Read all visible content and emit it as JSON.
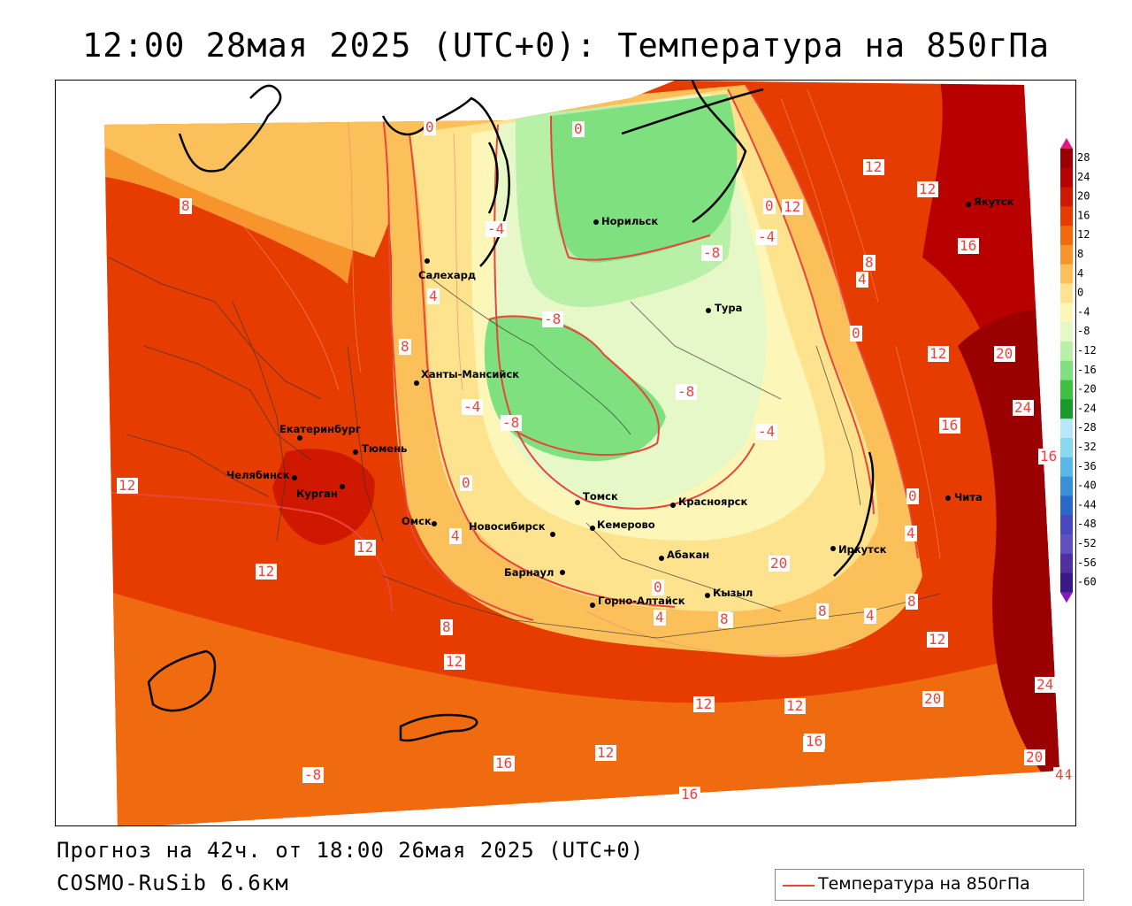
{
  "title": "12:00 28мая 2025 (UTC+0): Температура на 850гПа",
  "forecast_text": "Прогноз на 42ч. от 18:00 26мая 2025 (UTC+0)",
  "model_text": "COSMO-RuSib 6.6км",
  "legend": {
    "label": "Температура на 850гПа",
    "line_color": "#e8463c"
  },
  "colorbar": {
    "ticks": [
      "28",
      "24",
      "20",
      "16",
      "12",
      "8",
      "4",
      "0",
      "-4",
      "-8",
      "-12",
      "-16",
      "-20",
      "-24",
      "-28",
      "-32",
      "-36",
      "-40",
      "-44",
      "-48",
      "-52",
      "-56",
      "-60"
    ],
    "colors": [
      "#9b0000",
      "#b80000",
      "#d01800",
      "#e63c00",
      "#f06a10",
      "#f7952c",
      "#fbc05a",
      "#fde38e",
      "#fcf6b8",
      "#e6f8c8",
      "#b8f0a8",
      "#7ee07e",
      "#40c040",
      "#1a9a2a",
      "#b8e8f8",
      "#88d8f0",
      "#58b8e8",
      "#3890d8",
      "#2868c8",
      "#4848c0",
      "#6050c0",
      "#5030a0",
      "#3a1888"
    ],
    "top_arrow_color": "#e0188a",
    "bottom_arrow_color": "#8a18c0"
  },
  "cities": [
    {
      "name": "Якутск"
    },
    {
      "name": "Норильск"
    },
    {
      "name": "Салехард"
    },
    {
      "name": "Тура"
    },
    {
      "name": "Ханты-Мансийск"
    },
    {
      "name": "Екатеринбург"
    },
    {
      "name": "Тюмень"
    },
    {
      "name": "Челябинск"
    },
    {
      "name": "Курган"
    },
    {
      "name": "Томск"
    },
    {
      "name": "Красноярск"
    },
    {
      "name": "Омск"
    },
    {
      "name": "Новосибирск"
    },
    {
      "name": "Кемерово"
    },
    {
      "name": "Абакан"
    },
    {
      "name": "Барнаул"
    },
    {
      "name": "Иркутск"
    },
    {
      "name": "Чита"
    },
    {
      "name": "Горно-Алтайск"
    },
    {
      "name": "Кызыл"
    }
  ],
  "isotherm_labels": [
    "0",
    "0",
    "12",
    "12",
    "16",
    "12",
    "20",
    "24",
    "16",
    "8",
    "4",
    "0",
    "-4",
    "-8",
    "-4",
    "-8",
    "-8",
    "-4",
    "-8",
    "-8",
    "4",
    "8",
    "8",
    "12",
    "12",
    "-4",
    "0",
    "-4",
    "4",
    "12",
    "16",
    "12",
    "0",
    "0",
    "20",
    "8",
    "4",
    "8",
    "4",
    "12",
    "8",
    "12",
    "24",
    "20",
    "8",
    "12",
    "12",
    "16",
    "20",
    "16",
    "16",
    "16",
    "12",
    "4",
    "0",
    "4",
    "8"
  ]
}
